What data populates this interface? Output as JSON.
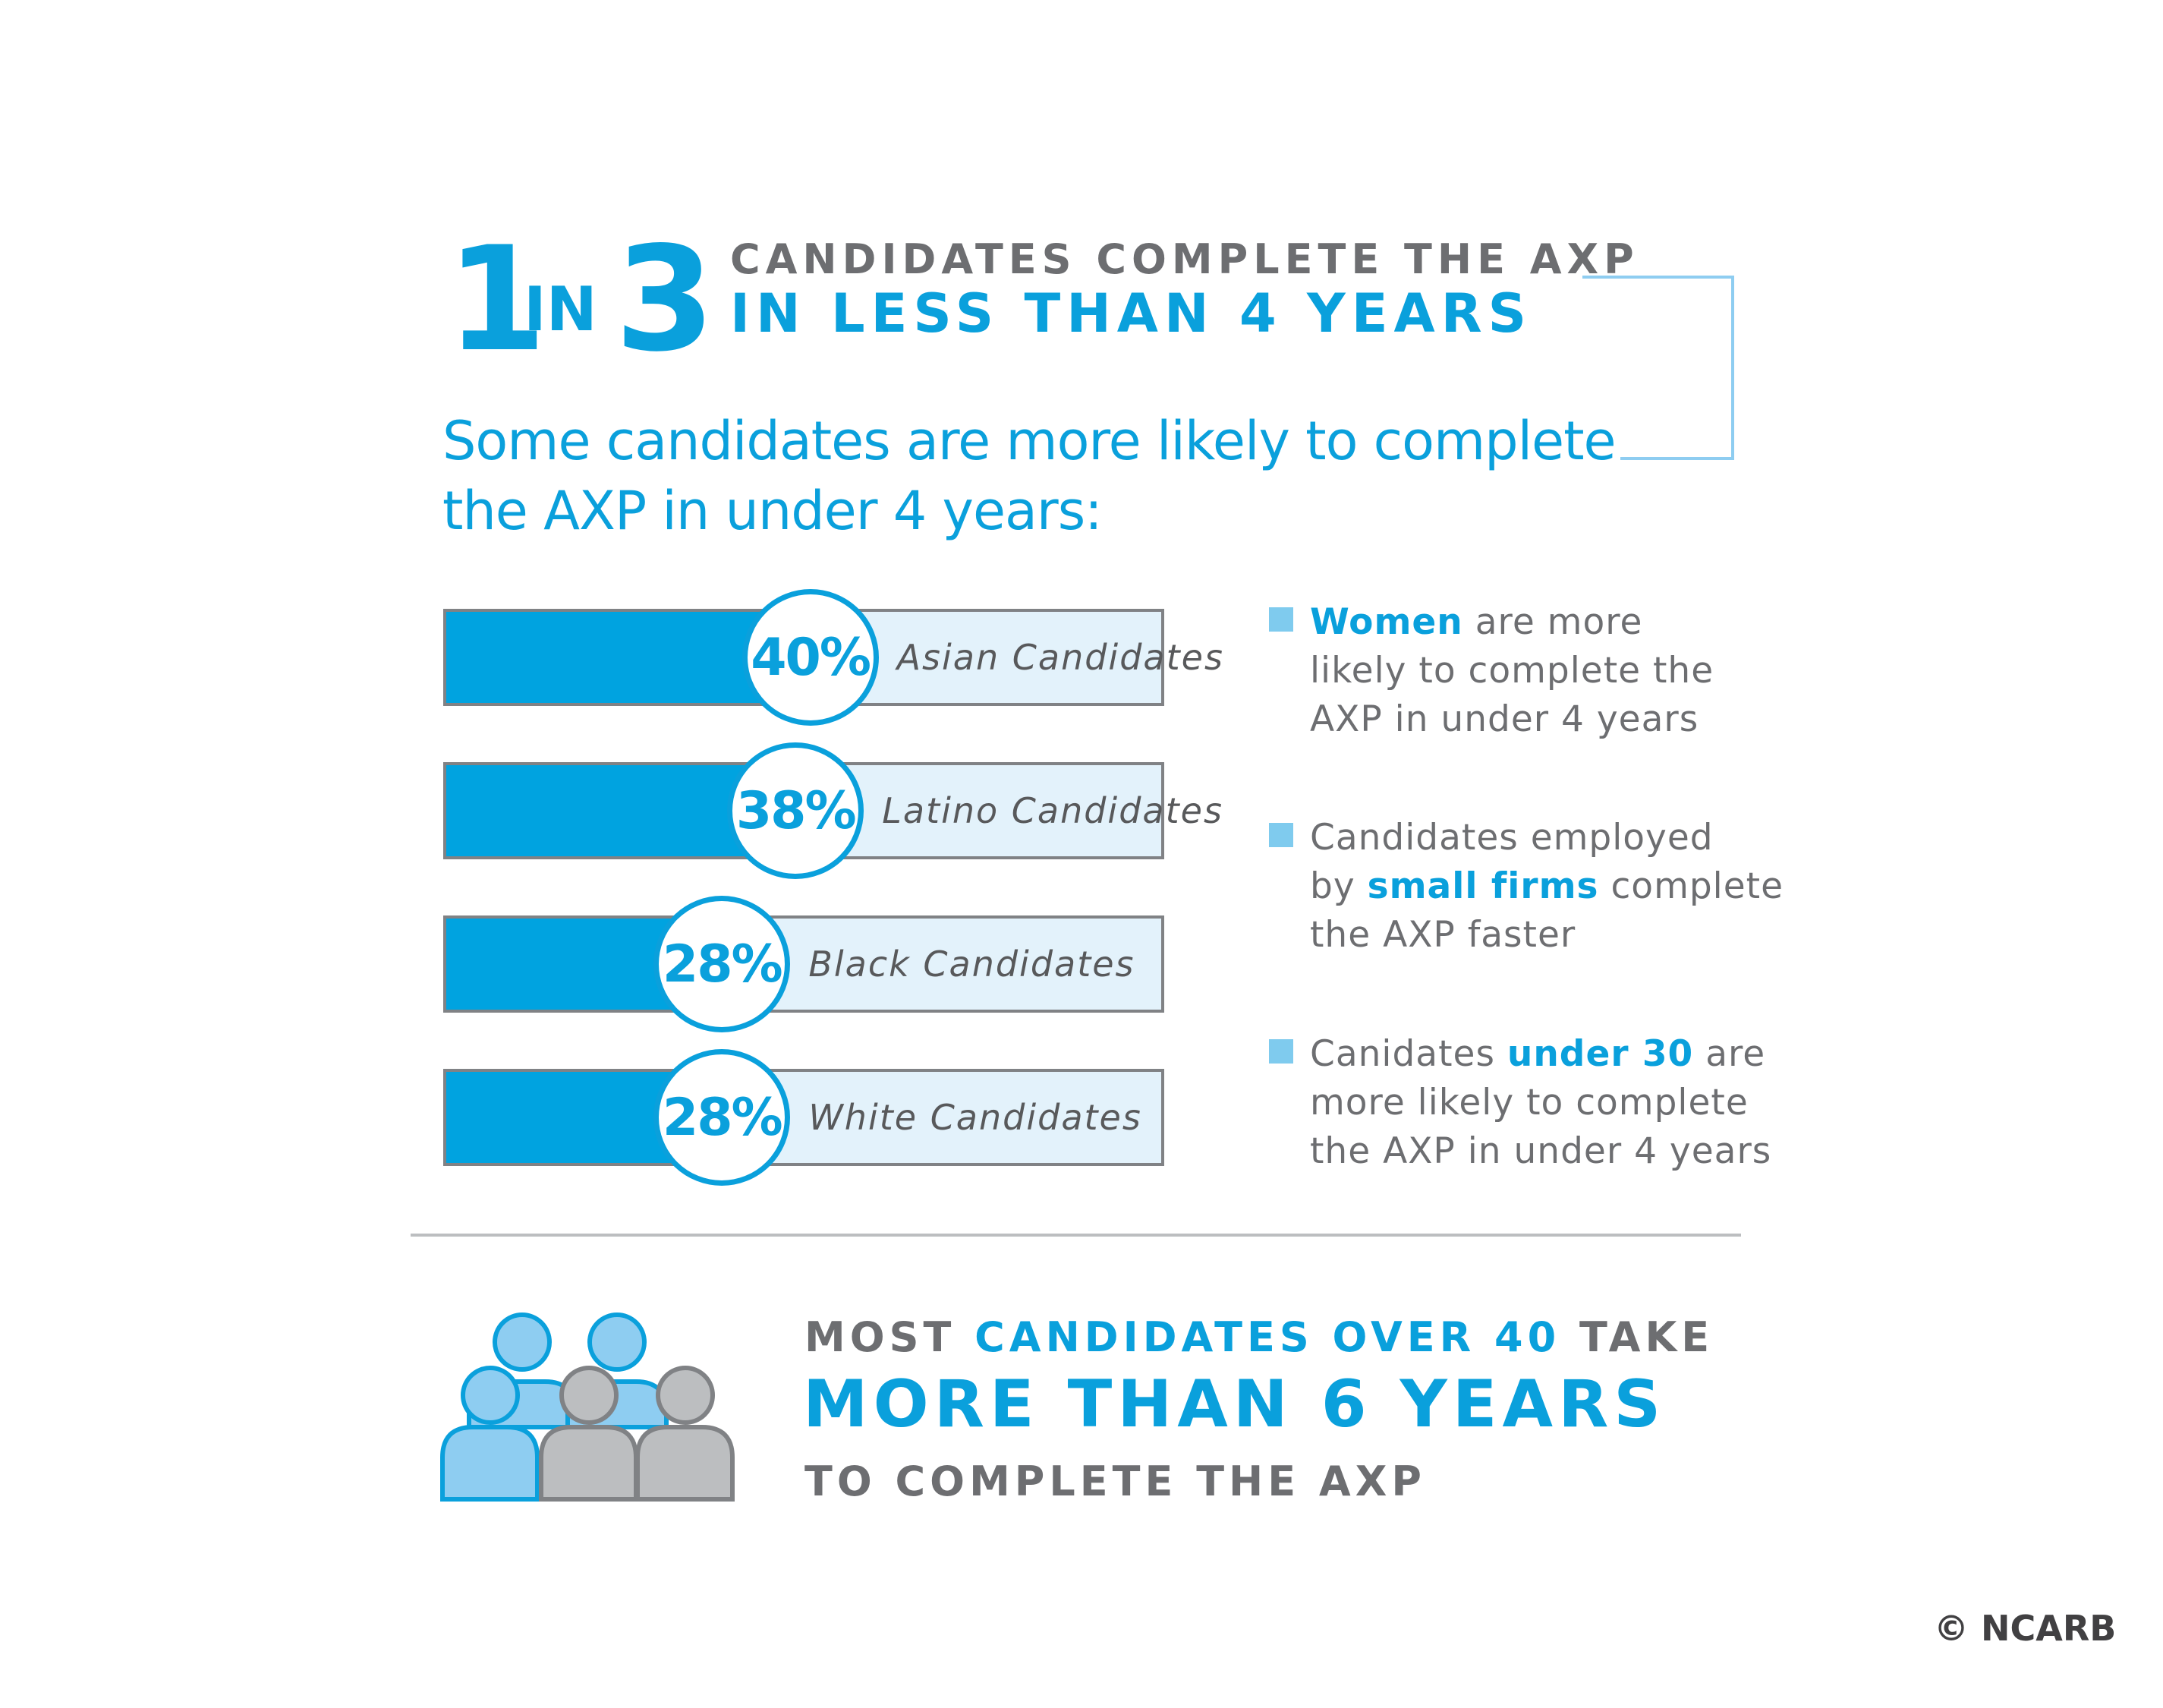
{
  "header": {
    "num1": "1",
    "in": "IN",
    "num2": "3",
    "line1": "CANDIDATES COMPLETE THE AXP",
    "line2": "IN LESS THAN 4 YEARS"
  },
  "subtitle": {
    "line1": "Some candidates are more likely to complete",
    "line2": "the AXP in under 4 years:"
  },
  "chart_data": {
    "type": "bar",
    "categories": [
      "Asian Candidates",
      "Latino Candidates",
      "Black Candidates",
      "White Candidates"
    ],
    "values": [
      40,
      38,
      28,
      28
    ],
    "value_labels": [
      "40%",
      "38%",
      "28%",
      "28%"
    ],
    "ylim": [
      0,
      100
    ],
    "colors": {
      "fill": "#00a3e0",
      "track": "#e3f2fb",
      "border": "#808285"
    }
  },
  "notes": [
    {
      "lines": [
        [
          {
            "t": "Women",
            "em": true
          },
          {
            "t": " are more"
          }
        ],
        [
          {
            "t": "likely to complete the"
          }
        ],
        [
          {
            "t": "AXP in under 4 years"
          }
        ]
      ]
    },
    {
      "lines": [
        [
          {
            "t": "Candidates employed"
          }
        ],
        [
          {
            "t": "by "
          },
          {
            "t": "small firms",
            "em": true
          },
          {
            "t": " complete"
          }
        ],
        [
          {
            "t": "the AXP faster"
          }
        ]
      ]
    },
    {
      "lines": [
        [
          {
            "t": "Canidates "
          },
          {
            "t": "under 30",
            "em": true
          },
          {
            "t": " are"
          }
        ],
        [
          {
            "t": "more likely to complete"
          }
        ],
        [
          {
            "t": "the AXP in under 4 years"
          }
        ]
      ]
    }
  ],
  "footer": {
    "line1_a": "MOST ",
    "line1_b": "CANDIDATES OVER 40",
    "line1_c": " TAKE",
    "line2": "MORE THAN 6 YEARS",
    "line3": "TO COMPLETE THE AXP",
    "people_icon": "people-group-icon"
  },
  "copyright": "© NCARB",
  "colors": {
    "accent": "#0aa0dc",
    "gray_text": "#6d6e71",
    "light_blue_person": "#8ecdf1",
    "gray_person": "#bcbec0"
  }
}
